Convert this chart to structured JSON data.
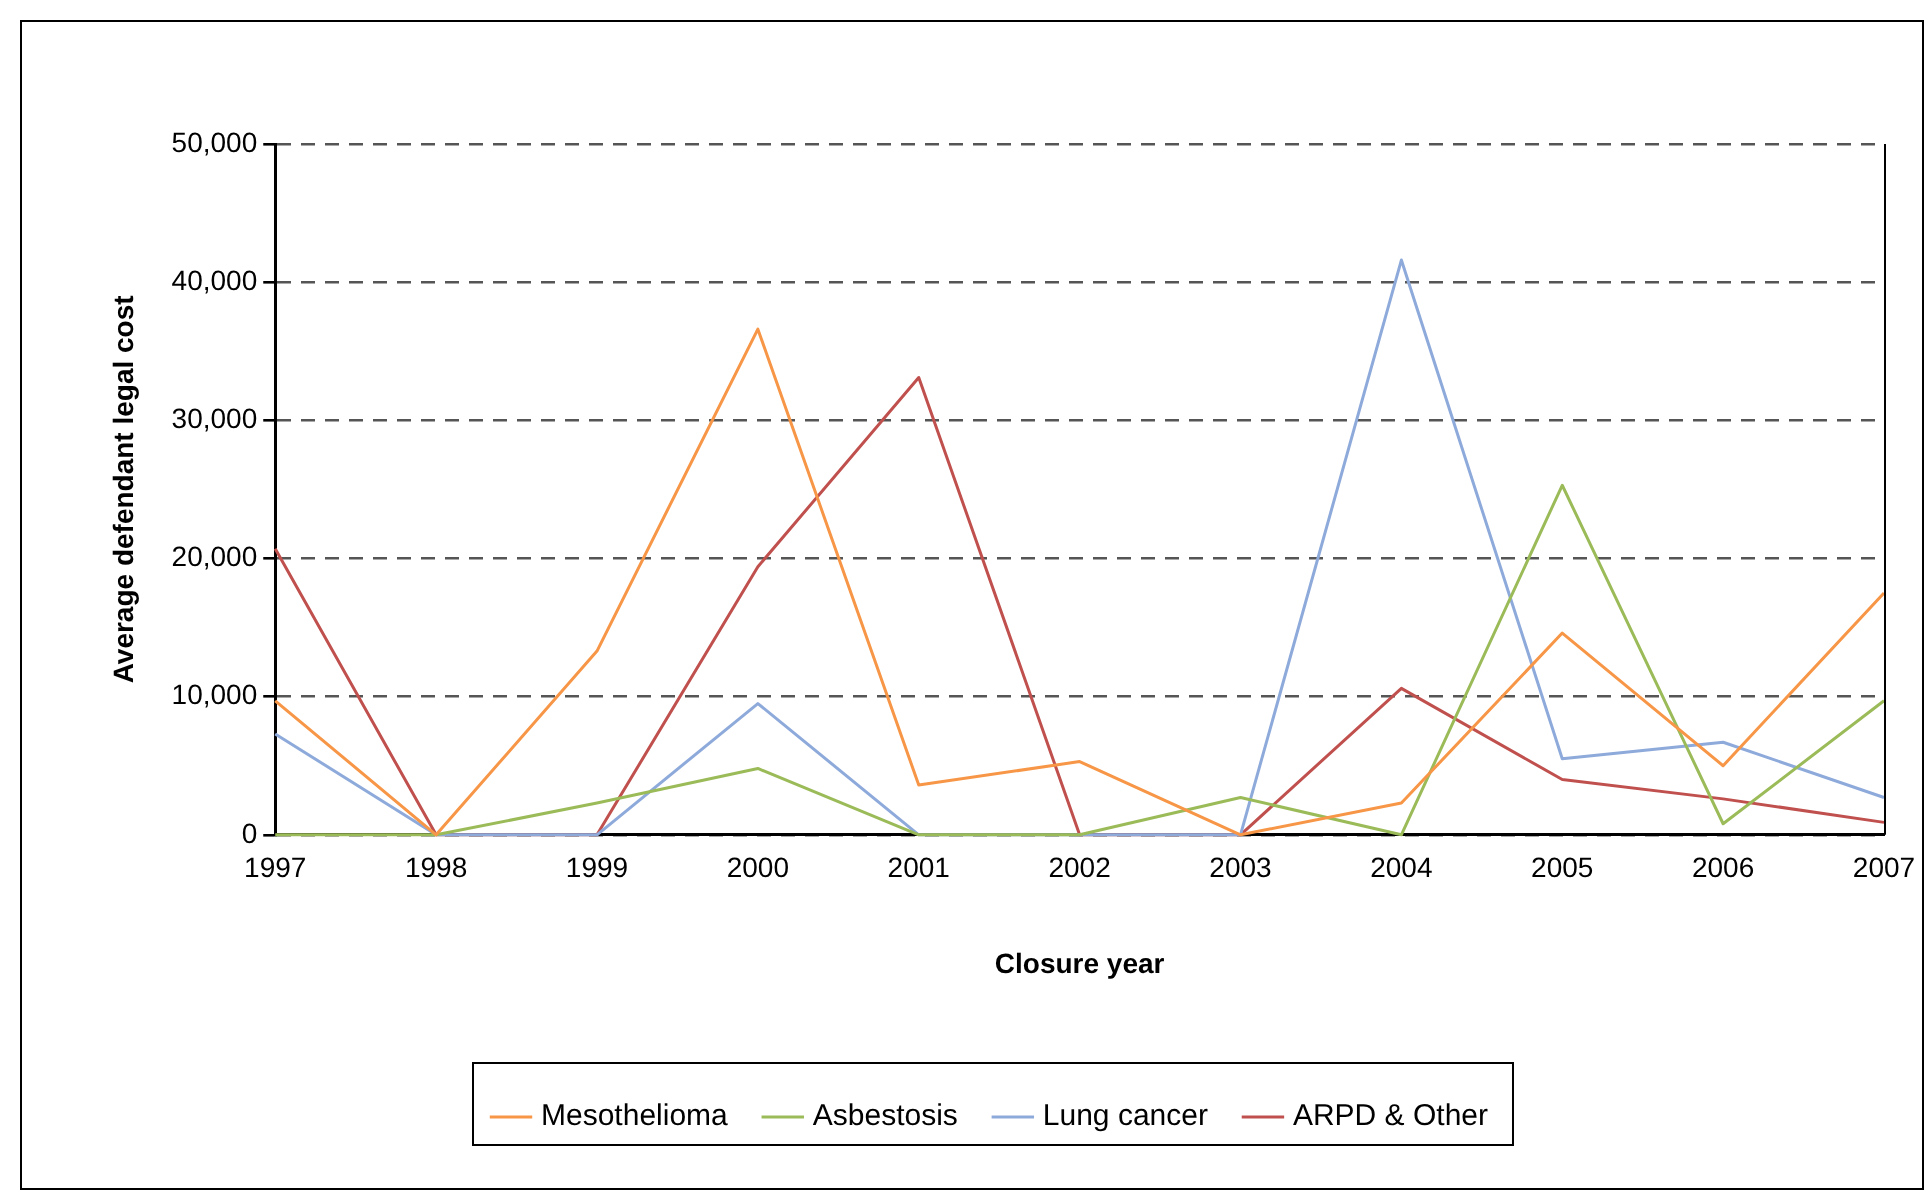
{
  "chart_data": {
    "type": "line",
    "xlabel": "Closure year",
    "ylabel": "Average defendant legal cost",
    "categories": [
      "1997",
      "1998",
      "1999",
      "2000",
      "2001",
      "2002",
      "2003",
      "2004",
      "2005",
      "2006",
      "2007"
    ],
    "series": [
      {
        "name": "Mesothelioma",
        "color": "#f79646",
        "values": [
          9700,
          0,
          13300,
          36600,
          3600,
          5300,
          0,
          2300,
          14600,
          5000,
          17500
        ]
      },
      {
        "name": "Asbestosis",
        "color": "#9bbb59",
        "values": [
          0,
          0,
          2300,
          4800,
          0,
          0,
          2700,
          0,
          25300,
          800,
          9700
        ]
      },
      {
        "name": "Lung cancer",
        "color": "#8eaadb",
        "values": [
          7300,
          0,
          0,
          9500,
          0,
          0,
          0,
          41600,
          5500,
          6700,
          2700
        ]
      },
      {
        "name": "ARPD & Other",
        "color": "#c0504d",
        "values": [
          20700,
          0,
          0,
          19400,
          33100,
          0,
          0,
          10600,
          4000,
          2600,
          900
        ]
      }
    ],
    "ylim": [
      0,
      50000
    ],
    "yticks": [
      {
        "value": 0,
        "label": "0"
      },
      {
        "value": 10000,
        "label": "10,000"
      },
      {
        "value": 20000,
        "label": "20,000"
      },
      {
        "value": 30000,
        "label": "30,000"
      },
      {
        "value": 40000,
        "label": "40,000"
      },
      {
        "value": 50000,
        "label": "50,000"
      }
    ],
    "grid": "y",
    "legend": "bottom",
    "marker": "none",
    "line_style": "solid"
  }
}
